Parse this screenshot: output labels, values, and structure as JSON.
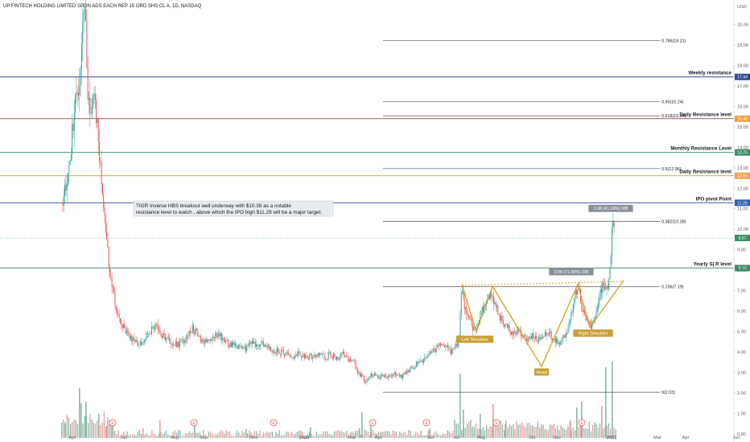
{
  "chart_data": {
    "type": "candlestick",
    "title": "UP FINTECH HOLDING LIMITED SPON ADS EACH REP 15 ORD SHS CL A, 1D, NASDAQ",
    "currency": "USD",
    "ylim": [
      -0.4,
      21.2
    ],
    "y_ticks": [
      "0.00",
      "1.00",
      "2.00",
      "3.00",
      "4.00",
      "5.00",
      "6.00",
      "7.00",
      "8.00",
      "9.00",
      "10.00",
      "11.00",
      "12.00",
      "13.00",
      "14.00",
      "15.00",
      "16.00",
      "17.00",
      "18.00",
      "19.00",
      "20.00"
    ],
    "x_ticks": [
      {
        "label": "Apr",
        "x": 90
      },
      {
        "label": "Jun",
        "x": 154
      },
      {
        "label": "Aug",
        "x": 217
      },
      {
        "label": "Sep",
        "x": 253
      },
      {
        "label": "Nov",
        "x": 315
      },
      {
        "label": "2020",
        "x": 378
      },
      {
        "label": "Mar",
        "x": 437
      },
      {
        "label": "Apr",
        "x": 470
      },
      {
        "label": "Jun",
        "x": 535
      },
      {
        "label": "Jul",
        "x": 567
      },
      {
        "label": "Aug",
        "x": 598
      },
      {
        "label": "Oct",
        "x": 661
      },
      {
        "label": "Nov",
        "x": 692
      },
      {
        "label": "2021",
        "x": 760
      },
      {
        "label": "Mar",
        "x": 817
      },
      {
        "label": "Apr",
        "x": 852
      },
      {
        "label": "Jun",
        "x": 915
      }
    ],
    "price_path": [
      [
        78,
        11.3
      ],
      [
        84,
        12.5
      ],
      [
        88,
        14
      ],
      [
        93,
        16.2
      ],
      [
        97,
        16.8
      ],
      [
        100,
        17.5
      ],
      [
        103,
        19.8
      ],
      [
        106,
        21
      ],
      [
        109,
        17
      ],
      [
        112,
        15.5
      ],
      [
        115,
        16.2
      ],
      [
        118,
        16.6
      ],
      [
        121,
        15
      ],
      [
        124,
        13.2
      ],
      [
        127,
        12
      ],
      [
        130,
        10.8
      ],
      [
        133,
        9.3
      ],
      [
        136,
        8
      ],
      [
        140,
        7
      ],
      [
        145,
        6
      ],
      [
        150,
        5.4
      ],
      [
        155,
        5.1
      ],
      [
        160,
        4.8
      ],
      [
        165,
        4.6
      ],
      [
        170,
        4.5
      ],
      [
        175,
        4.5
      ],
      [
        180,
        4.7
      ],
      [
        185,
        4.9
      ],
      [
        190,
        5.2
      ],
      [
        195,
        5.2
      ],
      [
        200,
        4.9
      ],
      [
        205,
        4.7
      ],
      [
        210,
        4.6
      ],
      [
        215,
        4.5
      ],
      [
        220,
        4.4
      ],
      [
        225,
        4.4
      ],
      [
        230,
        4.6
      ],
      [
        235,
        5.1
      ],
      [
        240,
        5.2
      ],
      [
        245,
        4.8
      ],
      [
        250,
        4.6
      ],
      [
        255,
        4.5
      ],
      [
        260,
        4.6
      ],
      [
        265,
        4.8
      ],
      [
        270,
        4.9
      ],
      [
        275,
        4.7
      ],
      [
        280,
        4.5
      ],
      [
        285,
        4.3
      ],
      [
        290,
        4.4
      ],
      [
        295,
        4.3
      ],
      [
        300,
        4.3
      ],
      [
        305,
        4.2
      ],
      [
        310,
        4.3
      ],
      [
        315,
        4.5
      ],
      [
        320,
        4.3
      ],
      [
        325,
        4.4
      ],
      [
        330,
        4.3
      ],
      [
        335,
        4.2
      ],
      [
        340,
        4.0
      ],
      [
        345,
        4.1
      ],
      [
        350,
        4.0
      ],
      [
        355,
        3.9
      ],
      [
        360,
        3.8
      ],
      [
        365,
        3.8
      ],
      [
        370,
        3.9
      ],
      [
        375,
        3.8
      ],
      [
        380,
        3.7
      ],
      [
        385,
        3.8
      ],
      [
        390,
        3.7
      ],
      [
        395,
        3.9
      ],
      [
        400,
        3.8
      ],
      [
        405,
        3.7
      ],
      [
        410,
        3.9
      ],
      [
        415,
        3.8
      ],
      [
        420,
        3.6
      ],
      [
        425,
        3.9
      ],
      [
        430,
        3.8
      ],
      [
        435,
        3.5
      ],
      [
        440,
        3.5
      ],
      [
        445,
        3.0
      ],
      [
        450,
        2.8
      ],
      [
        455,
        2.5
      ],
      [
        460,
        2.8
      ],
      [
        465,
        2.9
      ],
      [
        470,
        2.7
      ],
      [
        475,
        2.9
      ],
      [
        480,
        2.8
      ],
      [
        485,
        2.8
      ],
      [
        490,
        2.9
      ],
      [
        495,
        2.9
      ],
      [
        500,
        2.8
      ],
      [
        505,
        3.0
      ],
      [
        510,
        3.2
      ],
      [
        515,
        3.3
      ],
      [
        520,
        3.6
      ],
      [
        525,
        3.5
      ],
      [
        530,
        3.8
      ],
      [
        535,
        3.9
      ],
      [
        540,
        4.1
      ],
      [
        545,
        4.3
      ],
      [
        550,
        4.3
      ],
      [
        555,
        4.2
      ],
      [
        560,
        4.0
      ],
      [
        565,
        4.3
      ],
      [
        570,
        4.4
      ],
      [
        574,
        7.3
      ],
      [
        578,
        6.0
      ],
      [
        582,
        5.8
      ],
      [
        586,
        5.4
      ],
      [
        590,
        5.0
      ],
      [
        594,
        5.4
      ],
      [
        598,
        5.9
      ],
      [
        602,
        6.3
      ],
      [
        606,
        6.6
      ],
      [
        610,
        7.0
      ],
      [
        614,
        6.4
      ],
      [
        618,
        6.0
      ],
      [
        622,
        5.6
      ],
      [
        626,
        5.4
      ],
      [
        630,
        5.2
      ],
      [
        635,
        5.0
      ],
      [
        640,
        4.9
      ],
      [
        645,
        5.0
      ],
      [
        650,
        4.7
      ],
      [
        655,
        4.6
      ],
      [
        660,
        4.8
      ],
      [
        665,
        4.7
      ],
      [
        670,
        4.6
      ],
      [
        675,
        4.8
      ],
      [
        680,
        5.0
      ],
      [
        685,
        4.8
      ],
      [
        690,
        4.6
      ],
      [
        695,
        4.5
      ],
      [
        700,
        4.6
      ],
      [
        705,
        5.1
      ],
      [
        710,
        6.0
      ],
      [
        715,
        6.9
      ],
      [
        719,
        7.2
      ],
      [
        722,
        6.4
      ],
      [
        726,
        5.8
      ],
      [
        730,
        5.5
      ],
      [
        734,
        5.2
      ],
      [
        738,
        5.5
      ],
      [
        742,
        6.1
      ],
      [
        746,
        6.8
      ],
      [
        750,
        7.4
      ],
      [
        754,
        7.0
      ],
      [
        757,
        7.6
      ],
      [
        759,
        8.2
      ],
      [
        761,
        10.5
      ],
      [
        764,
        9.6
      ]
    ],
    "volume_spikes": [
      [
        80,
        18
      ],
      [
        98,
        62
      ],
      [
        100,
        43
      ],
      [
        106,
        45
      ],
      [
        122,
        30
      ],
      [
        132,
        15
      ],
      [
        138,
        20
      ],
      [
        177,
        12
      ],
      [
        198,
        22
      ],
      [
        241,
        15
      ],
      [
        305,
        11
      ],
      [
        385,
        13
      ],
      [
        446,
        12
      ],
      [
        449,
        32
      ],
      [
        460,
        16
      ],
      [
        533,
        12
      ],
      [
        571,
        80
      ],
      [
        575,
        35
      ],
      [
        596,
        30
      ],
      [
        612,
        42
      ],
      [
        627,
        17
      ],
      [
        672,
        15
      ],
      [
        708,
        22
      ],
      [
        716,
        38
      ],
      [
        722,
        45
      ],
      [
        747,
        40
      ],
      [
        752,
        88
      ],
      [
        760,
        95
      ]
    ],
    "fibonacci_levels": [
      {
        "label": "0.786(19.21)",
        "price": 19.21,
        "x_start": 476
      },
      {
        "label": "0.65(16.24)",
        "price": 16.24,
        "x_start": 476
      },
      {
        "label": "0.618(15.54)",
        "price": 15.54,
        "x_start": 476
      },
      {
        "label": "0.5(12.96)",
        "price": 12.96,
        "x_start": 476
      },
      {
        "label": "0.382(10.38)",
        "price": 10.38,
        "x_start": 476
      },
      {
        "label": "0.236(7.19)",
        "price": 7.19,
        "x_start": 476
      },
      {
        "label": "0(2.03)",
        "price": 2.03,
        "x_start": 476
      }
    ],
    "sr_lines": [
      {
        "label": "Weekly resistance",
        "price": 17.44,
        "color": "#2a4d8f",
        "tag": "17.44",
        "tag_color": "#2a4d8f"
      },
      {
        "label": "Daily Resistance level",
        "price": 15.4,
        "color": "#b94040",
        "tag": "15.40",
        "tag_color": "#e9a23b"
      },
      {
        "label": "Monthly Resistance Level",
        "price": 13.75,
        "color": "#2e8b57",
        "tag": "13.75",
        "tag_color": "#3c8f66"
      },
      {
        "label": "Daily Resistance level",
        "price": 12.61,
        "color": "#e09a3c",
        "tag": "12.61",
        "tag_color": "#f0a045"
      },
      {
        "label": "IPO pivot Point",
        "price": 11.29,
        "color": "#2a4d8f",
        "tag": "11.29",
        "tag_color": "#2a5fb0"
      },
      {
        "label": "Yearly S| R level",
        "price": 8.1,
        "color": "#2e8b57",
        "tag": "8.10",
        "tag_color": "#3c8f66"
      }
    ],
    "current_price_tag": {
      "text": "9.57",
      "price": 9.57
    },
    "ihs_pattern": {
      "path": [
        [
          574,
          7.3
        ],
        [
          592,
          5.0
        ],
        [
          612,
          7.2
        ],
        [
          673,
          3.3
        ],
        [
          718,
          7.3
        ],
        [
          733,
          5.2
        ],
        [
          775,
          7.5
        ]
      ],
      "neckline": [
        [
          574,
          7.25
        ],
        [
          775,
          7.45
        ]
      ],
      "labels": [
        {
          "text": "Left Shoulder",
          "x": 590,
          "price": 4.6
        },
        {
          "text": "Head",
          "x": 673,
          "price": 3.0
        },
        {
          "text": "Right Shoulder",
          "x": 737,
          "price": 4.9
        }
      ]
    },
    "badges": [
      {
        "text": "3.08 (71.98%) 308",
        "x": 710,
        "price": 7.9
      },
      {
        "text": "3.08 (41.19%) 308",
        "x": 759,
        "price": 11.0
      }
    ],
    "note": {
      "lines": [
        "TIGR Inverse HBS breakout well underway with $10.38 as a notable",
        "resistance level to watch , above which the IPO high $11.29 will be a major target."
      ]
    }
  }
}
